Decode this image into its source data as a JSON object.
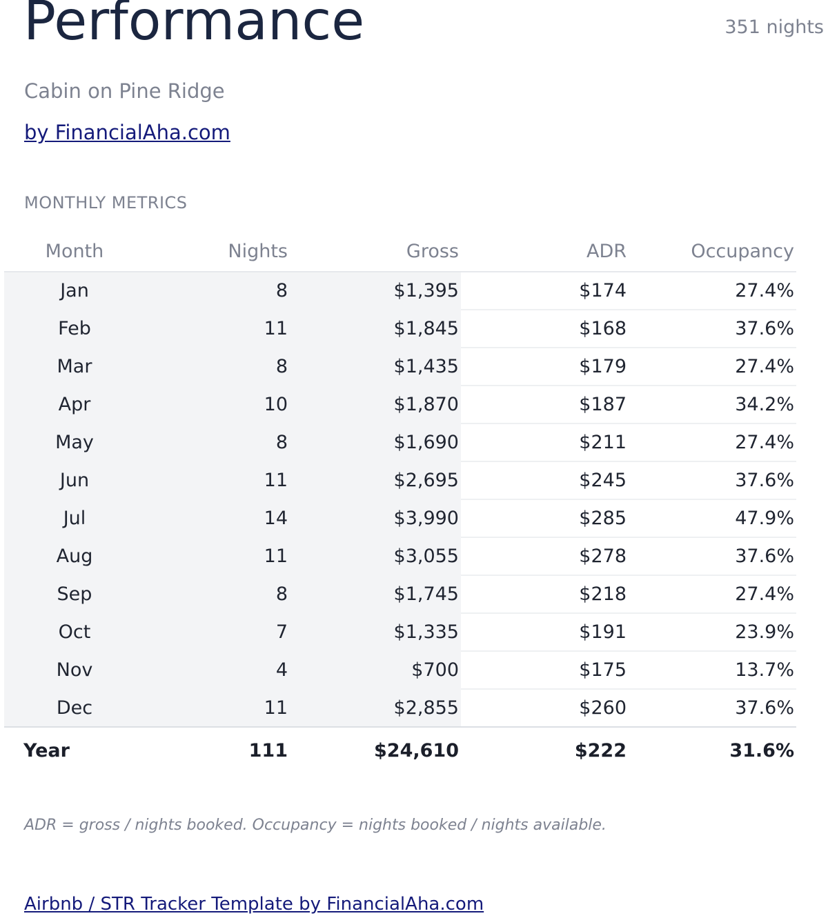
{
  "header": {
    "title": "Performance",
    "nights_total": "351 nights",
    "subtitle": "Cabin on Pine Ridge",
    "byline": "by FinancialAha.com"
  },
  "section": {
    "label": "MONTHLY METRICS"
  },
  "table": {
    "columns": [
      "Month",
      "Nights",
      "Gross",
      "ADR",
      "Occupancy"
    ],
    "rows": [
      {
        "month": "Jan",
        "nights": "8",
        "gross": "$1,395",
        "adr": "$174",
        "occupancy": "27.4%"
      },
      {
        "month": "Feb",
        "nights": "11",
        "gross": "$1,845",
        "adr": "$168",
        "occupancy": "37.6%"
      },
      {
        "month": "Mar",
        "nights": "8",
        "gross": "$1,435",
        "adr": "$179",
        "occupancy": "27.4%"
      },
      {
        "month": "Apr",
        "nights": "10",
        "gross": "$1,870",
        "adr": "$187",
        "occupancy": "34.2%"
      },
      {
        "month": "May",
        "nights": "8",
        "gross": "$1,690",
        "adr": "$211",
        "occupancy": "27.4%"
      },
      {
        "month": "Jun",
        "nights": "11",
        "gross": "$2,695",
        "adr": "$245",
        "occupancy": "37.6%"
      },
      {
        "month": "Jul",
        "nights": "14",
        "gross": "$3,990",
        "adr": "$285",
        "occupancy": "47.9%"
      },
      {
        "month": "Aug",
        "nights": "11",
        "gross": "$3,055",
        "adr": "$278",
        "occupancy": "37.6%"
      },
      {
        "month": "Sep",
        "nights": "8",
        "gross": "$1,745",
        "adr": "$218",
        "occupancy": "27.4%"
      },
      {
        "month": "Oct",
        "nights": "7",
        "gross": "$1,335",
        "adr": "$191",
        "occupancy": "23.9%"
      },
      {
        "month": "Nov",
        "nights": "4",
        "gross": "$700",
        "adr": "$175",
        "occupancy": "13.7%"
      },
      {
        "month": "Dec",
        "nights": "11",
        "gross": "$2,855",
        "adr": "$260",
        "occupancy": "37.6%"
      }
    ],
    "total": {
      "label": "Year",
      "nights": "111",
      "gross": "$24,610",
      "adr": "$222",
      "occupancy": "31.6%"
    }
  },
  "footnote": "ADR = gross / nights booked. Occupancy = nights booked / nights available.",
  "footer": {
    "link_text": "Airbnb / STR Tracker Template by FinancialAha.com"
  }
}
